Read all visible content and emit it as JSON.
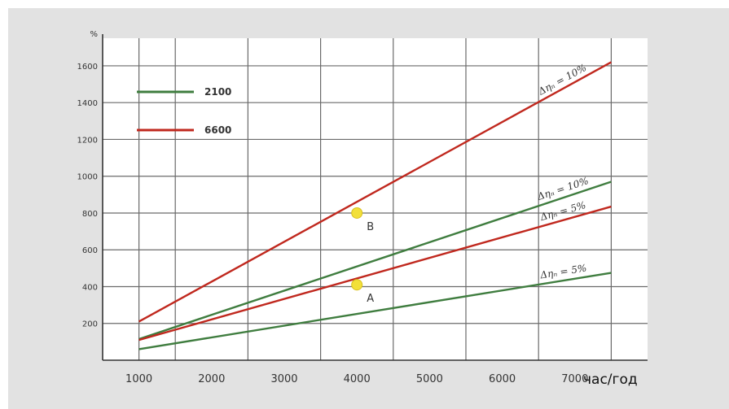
{
  "chart_data": {
    "type": "line",
    "title": "",
    "xlabel": "час/год",
    "ylabel": "%",
    "xlim": [
      500,
      8000
    ],
    "ylim": [
      0,
      1750
    ],
    "xticks": [
      1000,
      2000,
      3000,
      4000,
      5000,
      6000,
      7000
    ],
    "yticks": [
      200,
      400,
      600,
      800,
      1000,
      1200,
      1400,
      1600
    ],
    "vgrid": [
      1000,
      1500,
      2500,
      3500,
      4500,
      5500,
      6500,
      7500
    ],
    "hgrid": [
      200,
      400,
      600,
      800,
      1000,
      1200,
      1400,
      1600
    ],
    "grid": true,
    "legend_position": "top-left",
    "legend": [
      {
        "label": "2100",
        "color": "#3f7d3f"
      },
      {
        "label": "6600",
        "color": "#c0281e"
      }
    ],
    "series": [
      {
        "legend": "6600",
        "color": "#c0281e",
        "annotation": "Δηₙ = 10%",
        "x": [
          1000,
          7500
        ],
        "y": [
          210,
          1620
        ]
      },
      {
        "legend": "2100",
        "color": "#3f7d3f",
        "annotation": "Δηₙ = 10%",
        "x": [
          1000,
          7500
        ],
        "y": [
          115,
          970
        ]
      },
      {
        "legend": "6600",
        "color": "#c0281e",
        "annotation": "Δηₙ = 5%",
        "x": [
          1000,
          7500
        ],
        "y": [
          110,
          835
        ]
      },
      {
        "legend": "2100",
        "color": "#3f7d3f",
        "annotation": "Δηₙ = 5%",
        "x": [
          1000,
          7500
        ],
        "y": [
          60,
          475
        ]
      }
    ],
    "points": [
      {
        "label": "B",
        "x": 4000,
        "y": 800,
        "color": "#f2e03a"
      },
      {
        "label": "A",
        "x": 4000,
        "y": 410,
        "color": "#f2e03a"
      }
    ]
  }
}
